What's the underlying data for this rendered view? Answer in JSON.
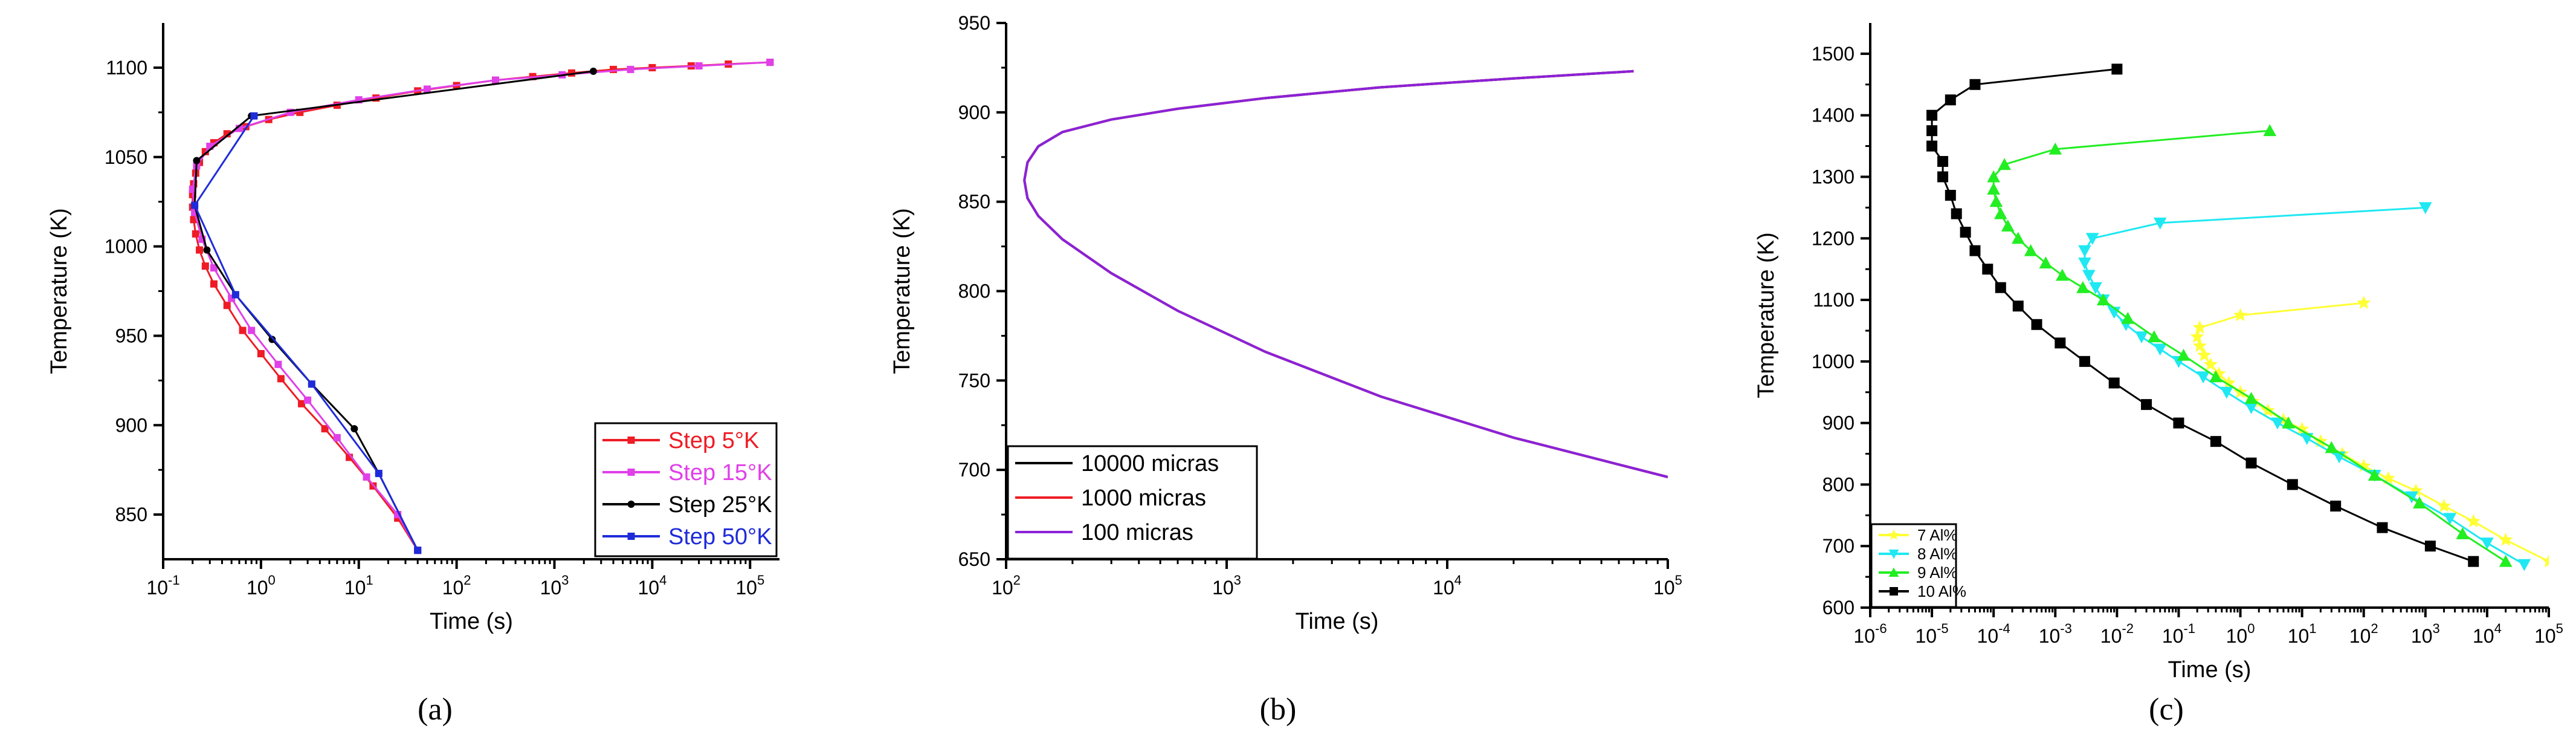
{
  "chart_data": [
    {
      "id": "a",
      "type": "line",
      "caption": "(a)",
      "title": "",
      "xlabel": "Time (s)",
      "ylabel": "Temperature (K)",
      "xscale": "log",
      "xlim": [
        0.1,
        200000
      ],
      "ylim": [
        825,
        1125
      ],
      "xticks": [
        {
          "v": 0.1,
          "base": "10",
          "exp": "-1"
        },
        {
          "v": 1,
          "base": "10",
          "exp": "0"
        },
        {
          "v": 10,
          "base": "10",
          "exp": "1"
        },
        {
          "v": 100,
          "base": "10",
          "exp": "2"
        },
        {
          "v": 1000,
          "base": "10",
          "exp": "3"
        },
        {
          "v": 10000,
          "base": "10",
          "exp": "4"
        },
        {
          "v": 100000,
          "base": "10",
          "exp": "5"
        }
      ],
      "yticks": [
        {
          "v": 850,
          "label": "850"
        },
        {
          "v": 900,
          "label": "900"
        },
        {
          "v": 950,
          "label": "950"
        },
        {
          "v": 1000,
          "label": "1000"
        },
        {
          "v": 1050,
          "label": "1050"
        },
        {
          "v": 1100,
          "label": "1100"
        }
      ],
      "legend_position": "bottom-right",
      "series": [
        {
          "name": "Step 5°K",
          "color": "#ee1c25",
          "marker": "square",
          "x": [
            160000,
            60000,
            25000,
            10000,
            4000,
            1500,
            600,
            250,
            100,
            40,
            15,
            6,
            2.5,
            1.2,
            0.7,
            0.45,
            0.33,
            0.27,
            0.235,
            0.215,
            0.205,
            0.2,
            0.2,
            0.205,
            0.215,
            0.235,
            0.27,
            0.33,
            0.45,
            0.65,
            1.0,
            1.6,
            2.6,
            4.5,
            8,
            14,
            25,
            40
          ],
          "y": [
            1103,
            1102,
            1101,
            1100,
            1099,
            1097,
            1095,
            1093,
            1090,
            1087,
            1083,
            1079,
            1075,
            1071,
            1067,
            1063,
            1058,
            1053,
            1047,
            1041,
            1035,
            1029,
            1022,
            1015,
            1007,
            998,
            989,
            979,
            967,
            953,
            940,
            926,
            912,
            898,
            882,
            866,
            848,
            830
          ]
        },
        {
          "name": "Step 15°K",
          "color": "#e040e8",
          "marker": "square",
          "x": [
            160000,
            30000,
            6000,
            1200,
            250,
            50,
            10,
            2,
            0.6,
            0.3,
            0.22,
            0.2,
            0.21,
            0.25,
            0.33,
            0.5,
            0.8,
            1.5,
            3,
            6,
            12,
            25,
            40
          ],
          "y": [
            1103,
            1101,
            1099,
            1096,
            1093,
            1088,
            1082,
            1075,
            1066,
            1056,
            1045,
            1032,
            1019,
            1004,
            988,
            971,
            953,
            934,
            914,
            893,
            871,
            850,
            830
          ]
        },
        {
          "name": "Step 25°K",
          "color": "#000000",
          "marker": "circle",
          "x": [
            2500,
            0.8,
            0.22,
            0.21,
            0.28,
            0.55,
            1.3,
            3.3,
            9,
            16,
            40
          ],
          "y": [
            1098,
            1073,
            1048,
            1023,
            998,
            973,
            948,
            923,
            898,
            873,
            830
          ]
        },
        {
          "name": "Step 50°K",
          "color": "#1f2bd9",
          "marker": "square",
          "x": [
            0.85,
            0.21,
            0.55,
            3.3,
            16,
            40
          ],
          "y": [
            1073,
            1023,
            973,
            923,
            873,
            830
          ]
        }
      ]
    },
    {
      "id": "b",
      "type": "line",
      "caption": "(b)",
      "title": "",
      "xlabel": "Time (s)",
      "ylabel": "Temperature (K)",
      "xscale": "log",
      "xlim": [
        100,
        100000
      ],
      "ylim": [
        650,
        950
      ],
      "xticks": [
        {
          "v": 100,
          "base": "10",
          "exp": "2"
        },
        {
          "v": 1000,
          "base": "10",
          "exp": "3"
        },
        {
          "v": 10000,
          "base": "10",
          "exp": "4"
        },
        {
          "v": 100000,
          "base": "10",
          "exp": "5"
        }
      ],
      "yticks": [
        {
          "v": 650,
          "label": "650"
        },
        {
          "v": 700,
          "label": "700"
        },
        {
          "v": 750,
          "label": "750"
        },
        {
          "v": 800,
          "label": "800"
        },
        {
          "v": 850,
          "label": "850"
        },
        {
          "v": 900,
          "label": "900"
        },
        {
          "v": 950,
          "label": "950"
        }
      ],
      "legend_position": "bottom-left",
      "series": [
        {
          "name": "10000 micras",
          "color": "#000000",
          "marker": "none",
          "x": [
            70000,
            20000,
            5000,
            1500,
            600,
            300,
            180,
            140,
            125,
            121,
            125,
            140,
            180,
            300,
            600,
            1500,
            5000,
            20000,
            100000
          ],
          "y": [
            923,
            919,
            914,
            908,
            902,
            896,
            889,
            881,
            872,
            862,
            852,
            842,
            829,
            810,
            789,
            766,
            741,
            718,
            696
          ]
        },
        {
          "name": "1000 micras",
          "color": "#ee1c25",
          "marker": "none",
          "x": [
            70000,
            20000,
            5000,
            1500,
            600,
            300,
            180,
            140,
            125,
            121,
            125,
            140,
            180,
            300,
            600,
            1500,
            5000,
            20000,
            100000
          ],
          "y": [
            923,
            919,
            914,
            908,
            902,
            896,
            889,
            881,
            872,
            862,
            852,
            842,
            829,
            810,
            789,
            766,
            741,
            718,
            696
          ]
        },
        {
          "name": "100 micras",
          "color": "#8b22d8",
          "marker": "none",
          "x": [
            70000,
            20000,
            5000,
            1500,
            600,
            300,
            180,
            140,
            125,
            121,
            125,
            140,
            180,
            300,
            600,
            1500,
            5000,
            20000,
            100000
          ],
          "y": [
            923,
            919,
            914,
            908,
            902,
            896,
            889,
            881,
            872,
            862,
            852,
            842,
            829,
            810,
            789,
            766,
            741,
            718,
            696
          ]
        }
      ]
    },
    {
      "id": "c",
      "type": "scatter",
      "caption": "(c)",
      "title": "",
      "xlabel": "Time (s)",
      "ylabel": "Temperature (K)",
      "xscale": "log",
      "xlim": [
        1e-06,
        100000
      ],
      "ylim": [
        600,
        1550
      ],
      "xticks": [
        {
          "v": 1e-06,
          "base": "10",
          "exp": "-6"
        },
        {
          "v": 1e-05,
          "base": "10",
          "exp": "-5"
        },
        {
          "v": 0.0001,
          "base": "10",
          "exp": "-4"
        },
        {
          "v": 0.001,
          "base": "10",
          "exp": "-3"
        },
        {
          "v": 0.01,
          "base": "10",
          "exp": "-2"
        },
        {
          "v": 0.1,
          "base": "10",
          "exp": "-1"
        },
        {
          "v": 1,
          "base": "10",
          "exp": "0"
        },
        {
          "v": 10,
          "base": "10",
          "exp": "1"
        },
        {
          "v": 100,
          "base": "10",
          "exp": "2"
        },
        {
          "v": 1000,
          "base": "10",
          "exp": "3"
        },
        {
          "v": 10000,
          "base": "10",
          "exp": "4"
        },
        {
          "v": 100000,
          "base": "10",
          "exp": "5"
        }
      ],
      "yticks": [
        {
          "v": 600,
          "label": "600"
        },
        {
          "v": 700,
          "label": "700"
        },
        {
          "v": 800,
          "label": "800"
        },
        {
          "v": 900,
          "label": "900"
        },
        {
          "v": 1000,
          "label": "1000"
        },
        {
          "v": 1100,
          "label": "1100"
        },
        {
          "v": 1200,
          "label": "1200"
        },
        {
          "v": 1300,
          "label": "1300"
        },
        {
          "v": 1400,
          "label": "1400"
        },
        {
          "v": 1500,
          "label": "1500"
        }
      ],
      "legend_position": "bottom-left",
      "series": [
        {
          "name": "7 Al%",
          "color": "#ffff33",
          "marker": "star",
          "x": [
            100,
            1,
            0.22,
            0.2,
            0.22,
            0.26,
            0.33,
            0.45,
            0.65,
            1,
            1.6,
            2.8,
            5,
            10,
            20,
            45,
            100,
            250,
            700,
            2000,
            6000,
            20000,
            100000
          ],
          "y": [
            1095,
            1075,
            1055,
            1040,
            1025,
            1010,
            995,
            980,
            965,
            950,
            935,
            920,
            905,
            890,
            870,
            850,
            830,
            810,
            790,
            765,
            740,
            710,
            675
          ]
        },
        {
          "name": "8 Al%",
          "color": "#1fe8f2",
          "marker": "triangle-down",
          "x": [
            1000,
            0.05,
            0.004,
            0.003,
            0.003,
            0.0035,
            0.0045,
            0.006,
            0.009,
            0.014,
            0.025,
            0.05,
            0.1,
            0.25,
            0.6,
            1.5,
            4,
            12,
            40,
            150,
            600,
            2500,
            10000,
            40000
          ],
          "y": [
            1250,
            1225,
            1200,
            1180,
            1160,
            1140,
            1120,
            1100,
            1080,
            1060,
            1040,
            1020,
            1000,
            975,
            950,
            925,
            900,
            875,
            845,
            815,
            780,
            745,
            705,
            670
          ]
        },
        {
          "name": "9 Al%",
          "color": "#22ee22",
          "marker": "triangle-up",
          "x": [
            3,
            0.001,
            0.00015,
            0.0001,
            0.0001,
            0.00011,
            0.00013,
            0.00017,
            0.00025,
            0.0004,
            0.0007,
            0.0013,
            0.0028,
            0.006,
            0.015,
            0.04,
            0.12,
            0.4,
            1.5,
            6,
            30,
            150,
            800,
            4000,
            20000
          ],
          "y": [
            1375,
            1345,
            1320,
            1300,
            1280,
            1260,
            1240,
            1220,
            1200,
            1180,
            1160,
            1140,
            1120,
            1100,
            1070,
            1040,
            1010,
            975,
            940,
            900,
            860,
            815,
            770,
            720,
            675
          ]
        },
        {
          "name": "10 Al%",
          "color": "#000000",
          "marker": "square",
          "x": [
            0.01,
            5e-05,
            2e-05,
            1e-05,
            1e-05,
            1e-05,
            1.5e-05,
            1.5e-05,
            2e-05,
            2.5e-05,
            3.5e-05,
            5e-05,
            8e-05,
            0.00013,
            0.00025,
            0.0005,
            0.0012,
            0.003,
            0.009,
            0.03,
            0.1,
            0.4,
            1.5,
            7,
            35,
            200,
            1200,
            6000
          ],
          "y": [
            1475,
            1450,
            1425,
            1400,
            1375,
            1350,
            1325,
            1300,
            1270,
            1240,
            1210,
            1180,
            1150,
            1120,
            1090,
            1060,
            1030,
            1000,
            965,
            930,
            900,
            870,
            835,
            800,
            765,
            730,
            700,
            675
          ]
        }
      ]
    }
  ]
}
